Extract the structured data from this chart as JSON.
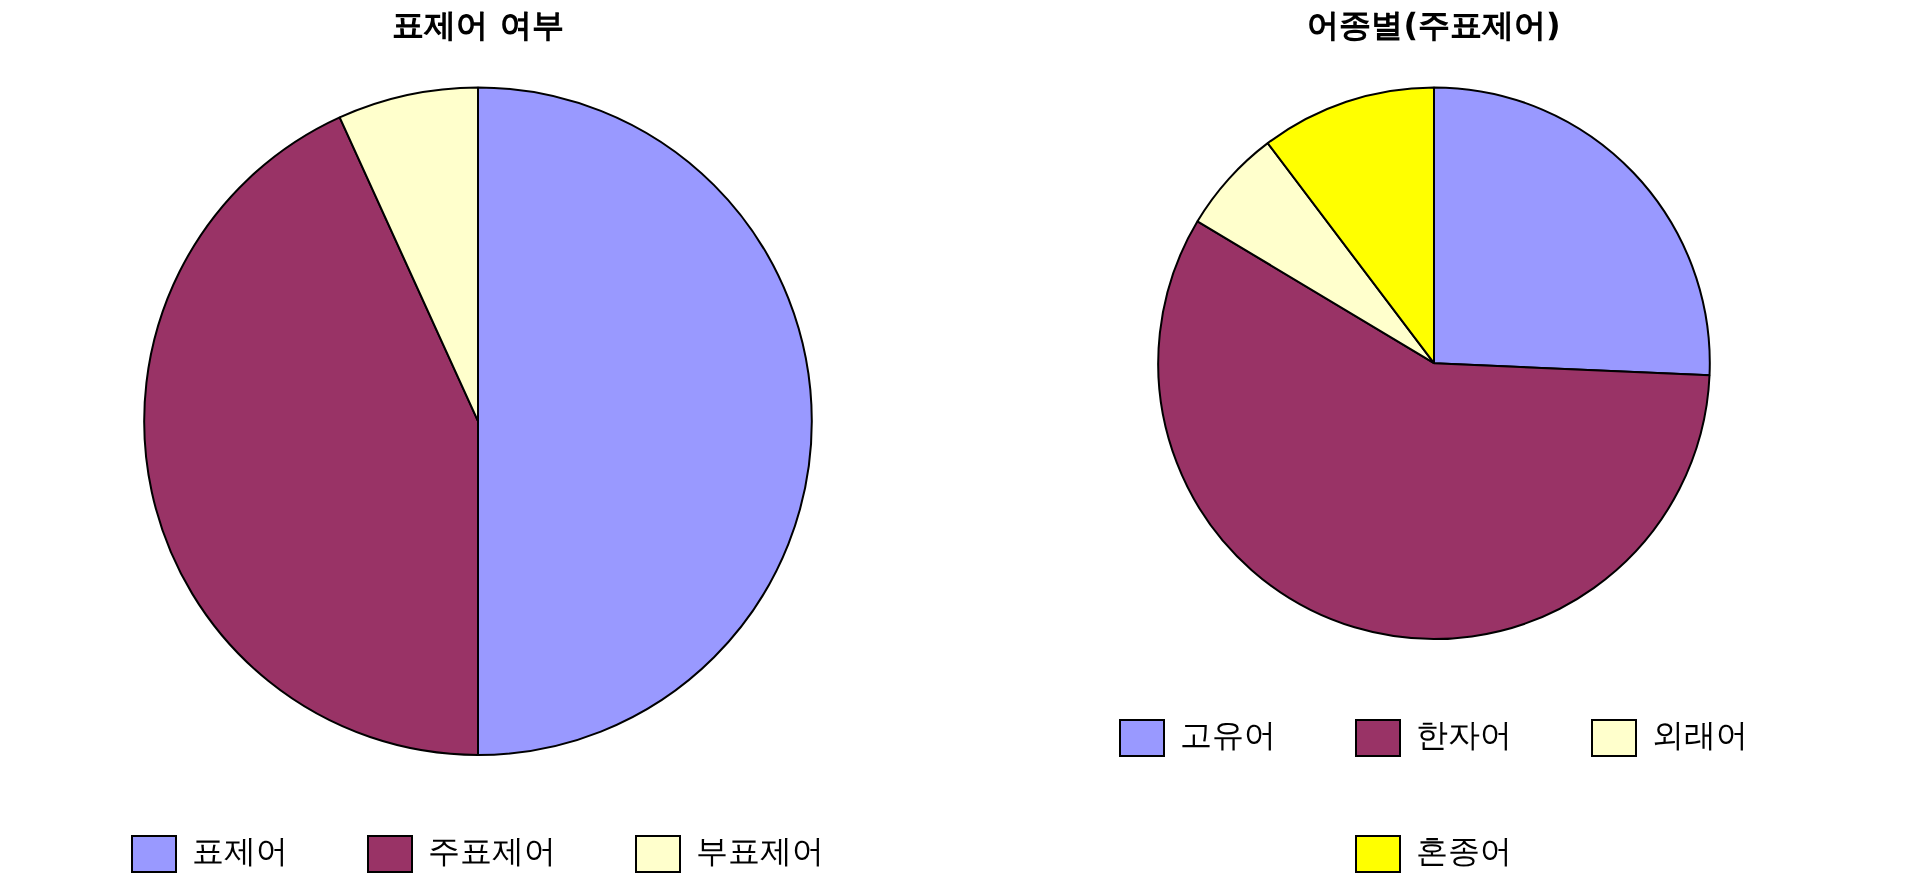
{
  "chart_data": [
    {
      "type": "pie",
      "title": "표제어 여부",
      "categories": [
        "표제어",
        "주표제어",
        "부표제어"
      ],
      "values": [
        50.0,
        43.2,
        6.8
      ],
      "colors": [
        "#9999ff",
        "#993366",
        "#ffffcc"
      ],
      "legend": "bottom"
    },
    {
      "type": "pie",
      "title": "어종별(주표제어)",
      "categories": [
        "고유어",
        "한자어",
        "외래어",
        "혼종어"
      ],
      "values": [
        25.7,
        57.9,
        6.1,
        10.3
      ],
      "colors": [
        "#9999ff",
        "#993366",
        "#ffffcc",
        "#ffff00"
      ],
      "legend": "bottom"
    }
  ]
}
